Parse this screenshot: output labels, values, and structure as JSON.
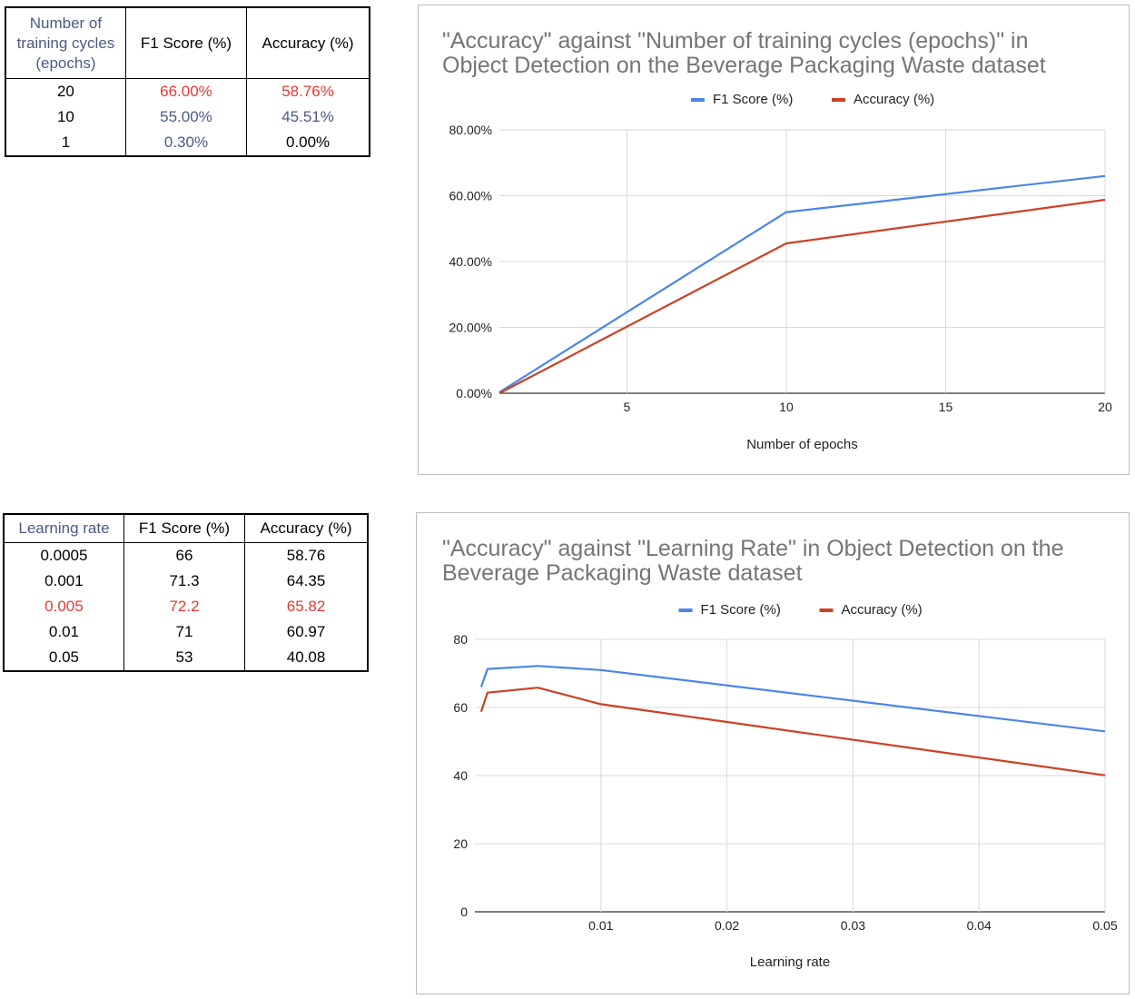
{
  "table_epochs": {
    "headers": [
      "Number of training cycles (epochs)",
      "F1 Score (%)",
      "Accuracy (%)"
    ],
    "header_lines": [
      "Number of",
      "training cycles",
      "(epochs)"
    ],
    "rows": [
      [
        "20",
        "66.00%",
        "58.76%"
      ],
      [
        "10",
        "55.00%",
        "45.51%"
      ],
      [
        "1",
        "0.30%",
        "0.00%"
      ]
    ]
  },
  "table_lr": {
    "headers": [
      "Learning rate",
      "F1 Score (%)",
      "Accuracy (%)"
    ],
    "rows": [
      [
        "0.0005",
        "66",
        "58.76"
      ],
      [
        "0.001",
        "71.3",
        "64.35"
      ],
      [
        "0.005",
        "72.2",
        "65.82"
      ],
      [
        "0.01",
        "71",
        "60.97"
      ],
      [
        "0.05",
        "53",
        "40.08"
      ]
    ]
  },
  "colors": {
    "f1": "#4a86e8",
    "accuracy": "#cc4125",
    "highlight": "#e53935",
    "header_blue": "#4a5a84"
  },
  "chart_data": [
    {
      "type": "line",
      "title_lines": [
        "\"Accuracy\" against \"Number of training cycles (epochs)\" in",
        "Object Detection on the Beverage Packaging Waste dataset"
      ],
      "xlabel": "Number of epochs",
      "ylabel": "",
      "x": [
        1,
        10,
        20
      ],
      "xlim": [
        1,
        20
      ],
      "xticks": [
        5,
        10,
        15,
        20
      ],
      "ylim": [
        0,
        80
      ],
      "yticks": [
        0,
        20,
        40,
        60,
        80
      ],
      "ytick_labels": [
        "0.00%",
        "20.00%",
        "40.00%",
        "60.00%",
        "80.00%"
      ],
      "grid": true,
      "legend": "top",
      "series": [
        {
          "name": "F1 Score (%)",
          "values": [
            0.3,
            55.0,
            66.0
          ]
        },
        {
          "name": "Accuracy (%)",
          "values": [
            0.0,
            45.51,
            58.76
          ]
        }
      ]
    },
    {
      "type": "line",
      "title_lines": [
        "\"Accuracy\" against \"Learning Rate\" in Object Detection on the",
        "Beverage Packaging Waste dataset"
      ],
      "xlabel": "Learning rate",
      "ylabel": "",
      "x": [
        0.0005,
        0.001,
        0.005,
        0.01,
        0.05
      ],
      "xlim": [
        0,
        0.05
      ],
      "xticks": [
        0.01,
        0.02,
        0.03,
        0.04,
        0.05
      ],
      "ylim": [
        0,
        80
      ],
      "yticks": [
        0,
        20,
        40,
        60,
        80
      ],
      "ytick_labels": [
        "0",
        "20",
        "40",
        "60",
        "80"
      ],
      "grid": true,
      "legend": "top",
      "series": [
        {
          "name": "F1 Score (%)",
          "values": [
            66,
            71.3,
            72.2,
            71,
            53
          ]
        },
        {
          "name": "Accuracy (%)",
          "values": [
            58.76,
            64.35,
            65.82,
            60.97,
            40.08
          ]
        }
      ]
    }
  ]
}
